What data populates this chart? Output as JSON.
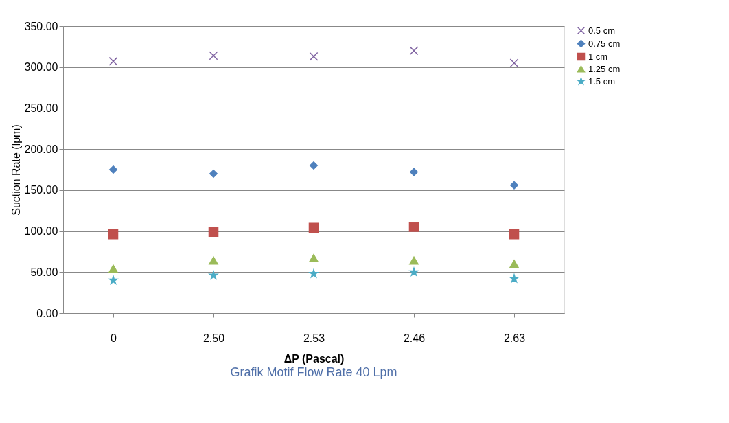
{
  "chart_data": {
    "type": "scatter",
    "xlabel": "ΔP (Pascal)",
    "ylabel": "Suction Rate (lpm)",
    "annotations": [
      "Grafik Motif Flow Rate 40 Lpm"
    ],
    "categories": [
      "0",
      "2.50",
      "2.53",
      "2.46",
      "2.63"
    ],
    "series": [
      {
        "name": "0.5 cm",
        "color": "#8064a2",
        "marker": "cross",
        "values": [
          307,
          314,
          313,
          320,
          305
        ]
      },
      {
        "name": "0.75 cm",
        "color": "#4f81bd",
        "marker": "diamond",
        "values": [
          175,
          170,
          180,
          172,
          156
        ]
      },
      {
        "name": "1 cm",
        "color": "#c0504d",
        "marker": "square",
        "values": [
          96,
          99,
          104,
          105,
          96
        ]
      },
      {
        "name": "1.25 cm",
        "color": "#9bbb59",
        "marker": "triangle",
        "values": [
          54,
          64,
          67,
          64,
          60
        ]
      },
      {
        "name": "1.5 cm",
        "color": "#4bacc6",
        "marker": "star",
        "values": [
          40,
          46,
          48,
          50,
          42
        ]
      }
    ],
    "ylim": [
      0,
      350
    ],
    "yticks": [
      {
        "value": 0,
        "label": "0.00"
      },
      {
        "value": 50,
        "label": "50.00"
      },
      {
        "value": 100,
        "label": "100.00"
      },
      {
        "value": 150,
        "label": "150.00"
      },
      {
        "value": 200,
        "label": "200.00"
      },
      {
        "value": 250,
        "label": "250.00"
      },
      {
        "value": 300,
        "label": "300.00"
      },
      {
        "value": 350,
        "label": "350.00"
      }
    ],
    "grid": "y",
    "legend": "right"
  }
}
